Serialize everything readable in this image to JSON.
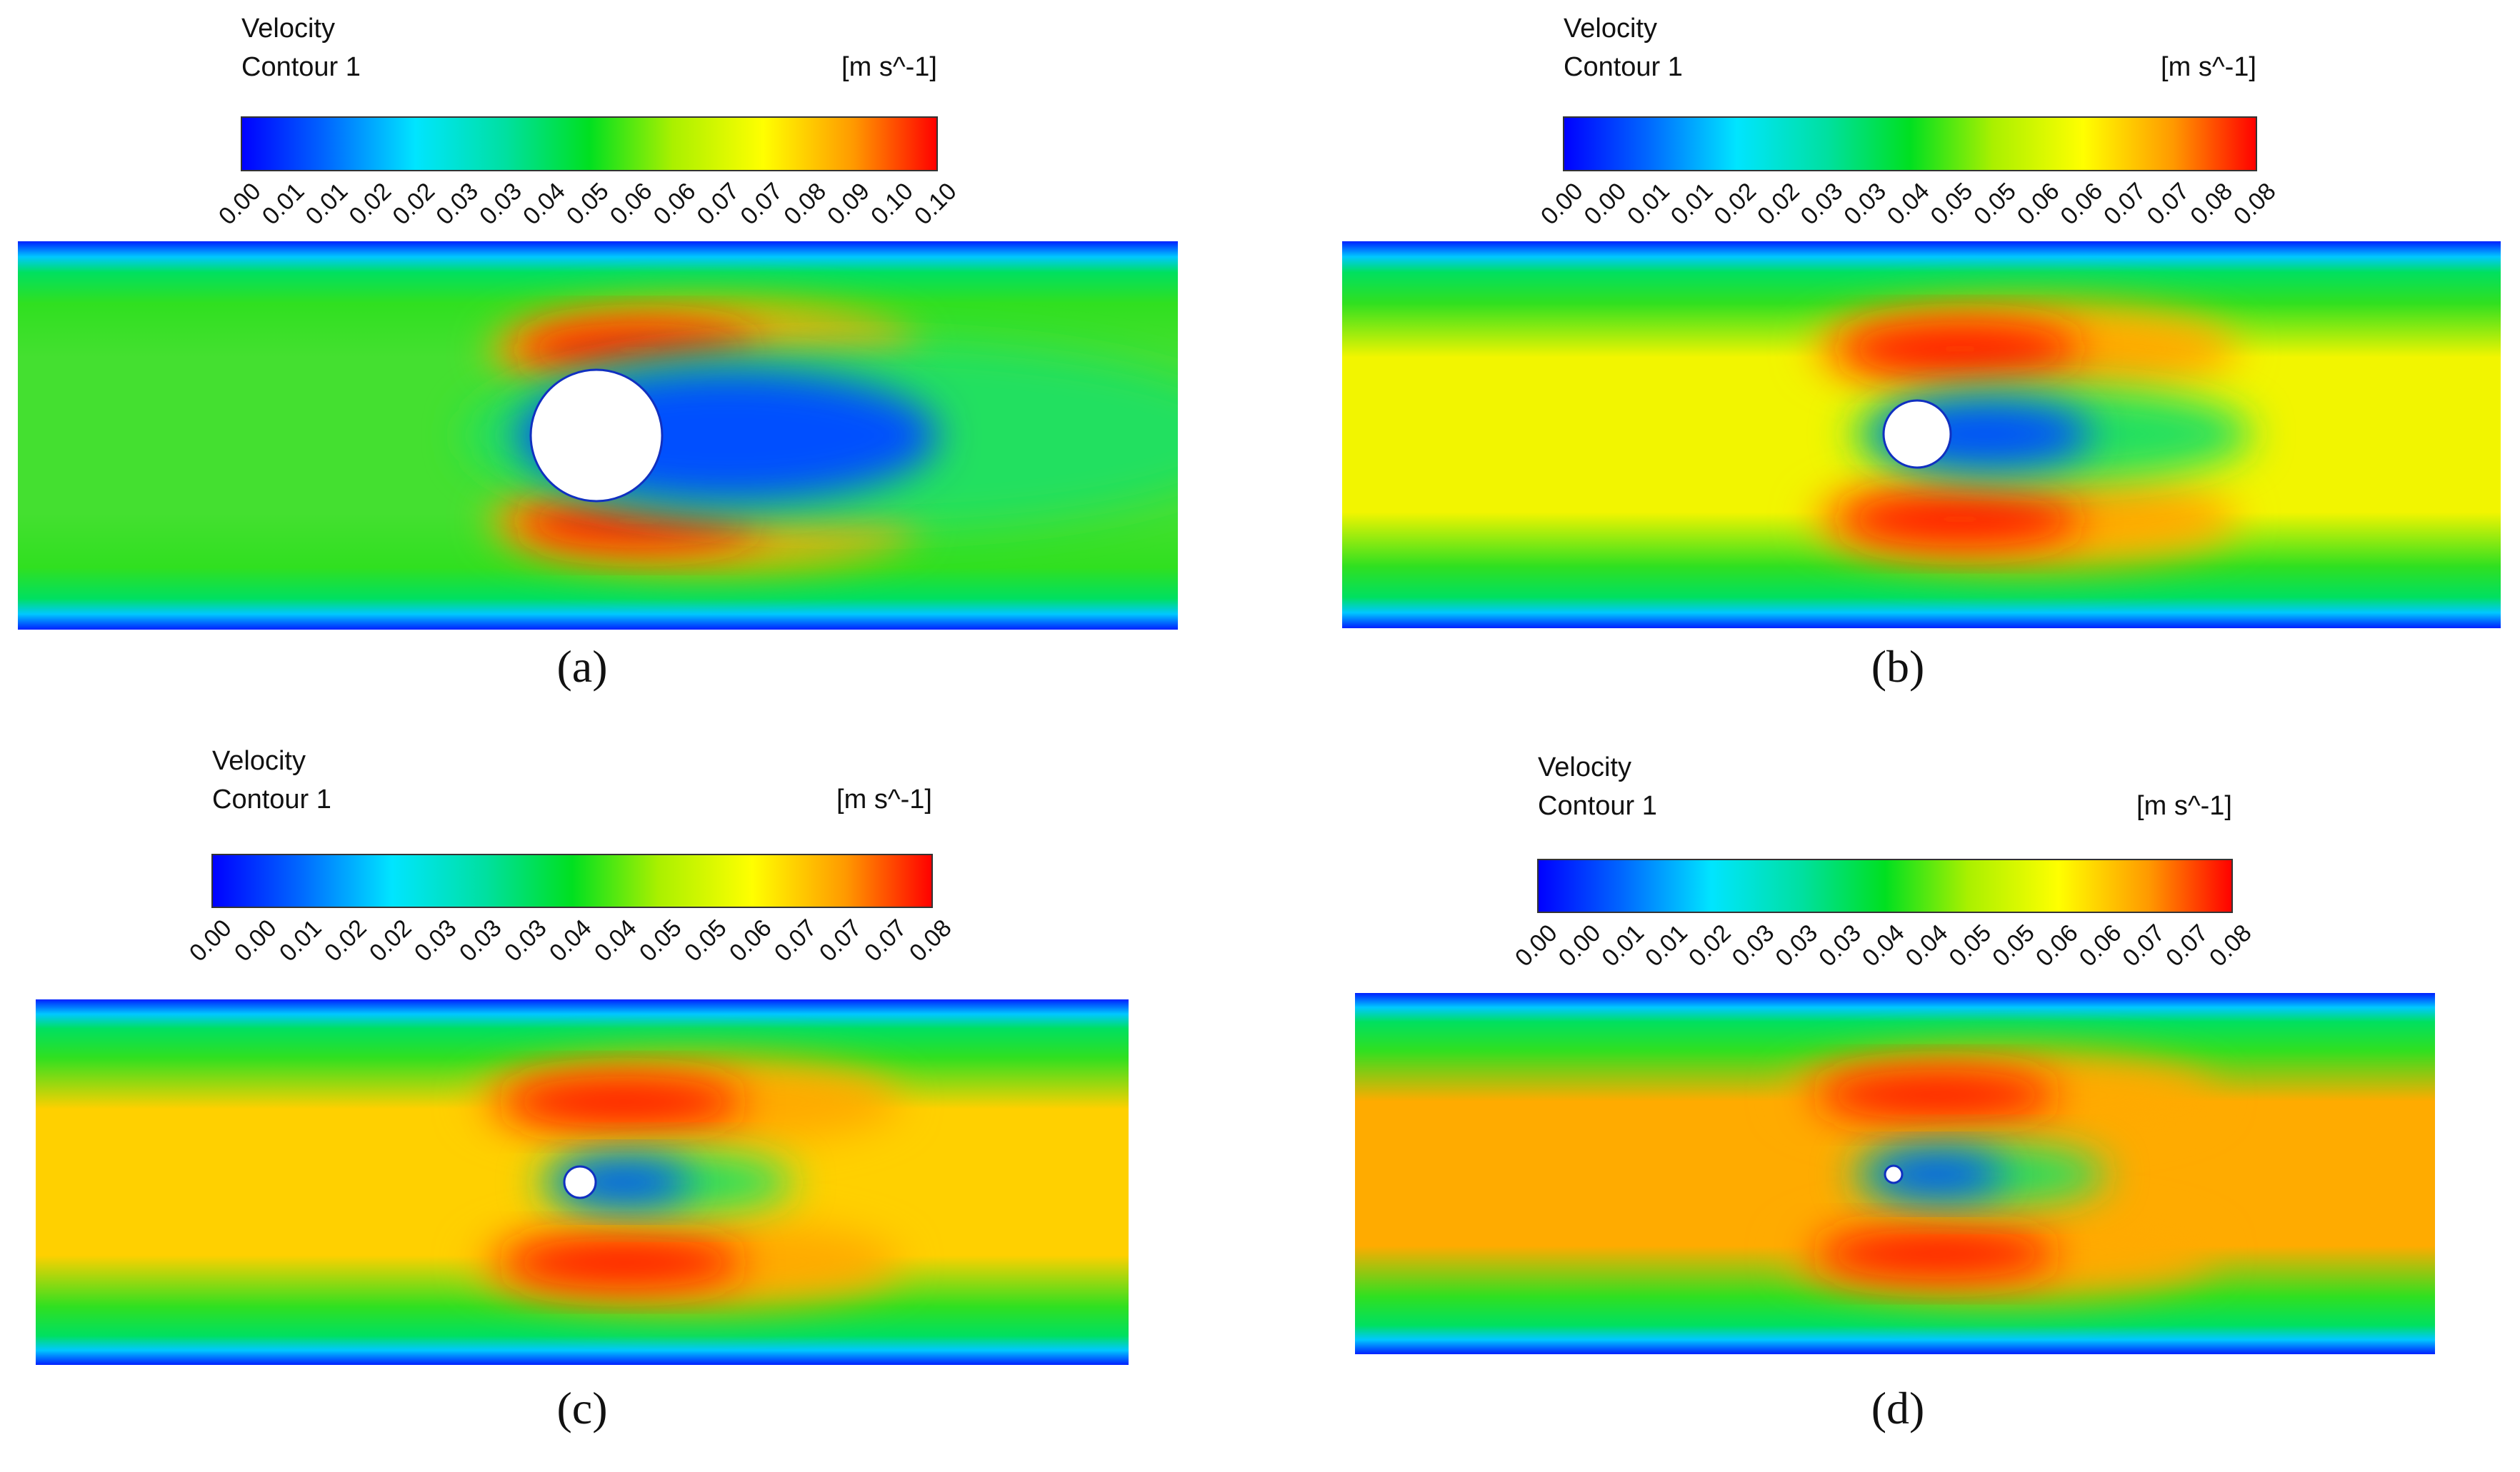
{
  "panels": [
    {
      "title": "Velocity",
      "subtitle": "Contour 1",
      "unit": "[m s^-1]",
      "caption": "(a)",
      "ticks": [
        "0.00",
        "0.01",
        "0.01",
        "0.02",
        "0.02",
        "0.03",
        "0.03",
        "0.04",
        "0.05",
        "0.06",
        "0.06",
        "0.07",
        "0.07",
        "0.08",
        "0.09",
        "0.10",
        "0.10"
      ]
    },
    {
      "title": "Velocity",
      "subtitle": "Contour 1",
      "unit": "[m s^-1]",
      "caption": "(b)",
      "ticks": [
        "0.00",
        "0.00",
        "0.01",
        "0.01",
        "0.02",
        "0.02",
        "0.03",
        "0.03",
        "0.04",
        "0.05",
        "0.05",
        "0.06",
        "0.06",
        "0.07",
        "0.07",
        "0.08",
        "0.08"
      ]
    },
    {
      "title": "Velocity",
      "subtitle": "Contour 1",
      "unit": "[m s^-1]",
      "caption": "(c)",
      "ticks": [
        "0.00",
        "0.00",
        "0.01",
        "0.02",
        "0.02",
        "0.03",
        "0.03",
        "0.03",
        "0.04",
        "0.04",
        "0.05",
        "0.05",
        "0.06",
        "0.07",
        "0.07",
        "0.07",
        "0.08"
      ]
    },
    {
      "title": "Velocity",
      "subtitle": "Contour 1",
      "unit": "[m s^-1]",
      "caption": "(d)",
      "ticks": [
        "0.00",
        "0.00",
        "0.01",
        "0.01",
        "0.02",
        "0.03",
        "0.03",
        "0.03",
        "0.04",
        "0.04",
        "0.05",
        "0.05",
        "0.06",
        "0.06",
        "0.07",
        "0.07",
        "0.08"
      ]
    }
  ]
}
